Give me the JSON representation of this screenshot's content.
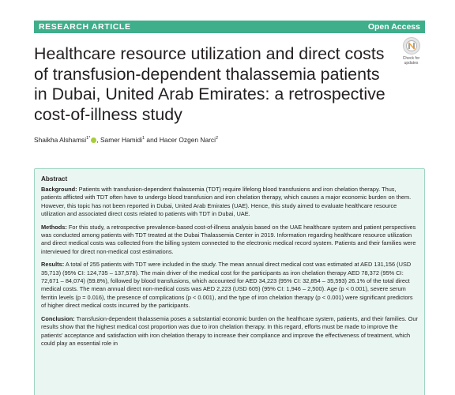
{
  "header": {
    "left_label": "RESEARCH ARTICLE",
    "right_label": "Open Access",
    "accent_color": "#3fae8b"
  },
  "check_updates": {
    "text": "Check for\nupdates",
    "icon": "check-for-updates-icon"
  },
  "article": {
    "title": "Healthcare resource utilization and direct costs of transfusion-dependent thalassemia patients in Dubai, United Arab Emirates: a retrospective cost-of-illness study",
    "authors": [
      {
        "name": "Shaikha Alshamsi",
        "sup": "1*"
      },
      {
        "name": "Samer Hamidi",
        "sup": "1"
      },
      {
        "name": "Hacer Ozgen Narci",
        "sup": "2"
      }
    ],
    "author_sep_1": ", ",
    "author_sep_2": " and "
  },
  "abstract": {
    "heading": "Abstract",
    "sections": [
      {
        "label": "Background:",
        "text": "Patients with transfusion-dependent thalassemia (TDT) require lifelong blood transfusions and iron chelation therapy. Thus, patients afflicted with TDT often have to undergo blood transfusion and iron chelation therapy, which causes a major economic burden on them. However, this topic has not been reported in Dubai, United Arab Emirates (UAE). Hence, this study aimed to evaluate healthcare resource utilization and associated direct costs related to patients with TDT in Dubai, UAE."
      },
      {
        "label": "Methods:",
        "text": "For this study, a retrospective prevalence-based cost-of-illness analysis based on the UAE healthcare system and patient perspectives was conducted among patients with TDT treated at the Dubai Thalassemia Center in 2019. Information regarding healthcare resource utilization and direct medical costs was collected from the billing system connected to the electronic medical record system. Patients and their families were interviewed for direct non-medical cost estimations."
      },
      {
        "label": "Results:",
        "text": "A total of 255 patients with TDT were included in the study. The mean annual direct medical cost was estimated at AED 131,156 (USD 35,713) (95% CI: 124,735 – 137,578). The main driver of the medical cost for the participants as iron chelation therapy AED 78,372 (95% CI: 72,671 – 84,074) (59.8%), followed by blood transfusions, which accounted for AED 34,223 (95% CI: 32,854 – 35,593) 26.1% of the total direct medical costs. The mean annual direct non-medical costs was AED 2,223 (USD 605) (95% CI: 1,946 – 2,500). Age (p < 0.001), severe serum ferritin levels (p = 0.016), the presence of complications (p < 0.001), and the type of iron chelation therapy (p < 0.001) were significant predictors of higher direct medical costs incurred by the participants."
      },
      {
        "label": "Conclusion:",
        "text": "Transfusion-dependent thalassemia poses a substantial economic burden on the healthcare system, patients, and their families. Our results show that the highest medical cost proportion was due to iron chelation therapy. In this regard, efforts must be made to improve the patients' acceptance and satisfaction with iron chelation therapy to increase their compliance and improve the effectiveness of treatment, which could play an essential role in"
      }
    ]
  }
}
